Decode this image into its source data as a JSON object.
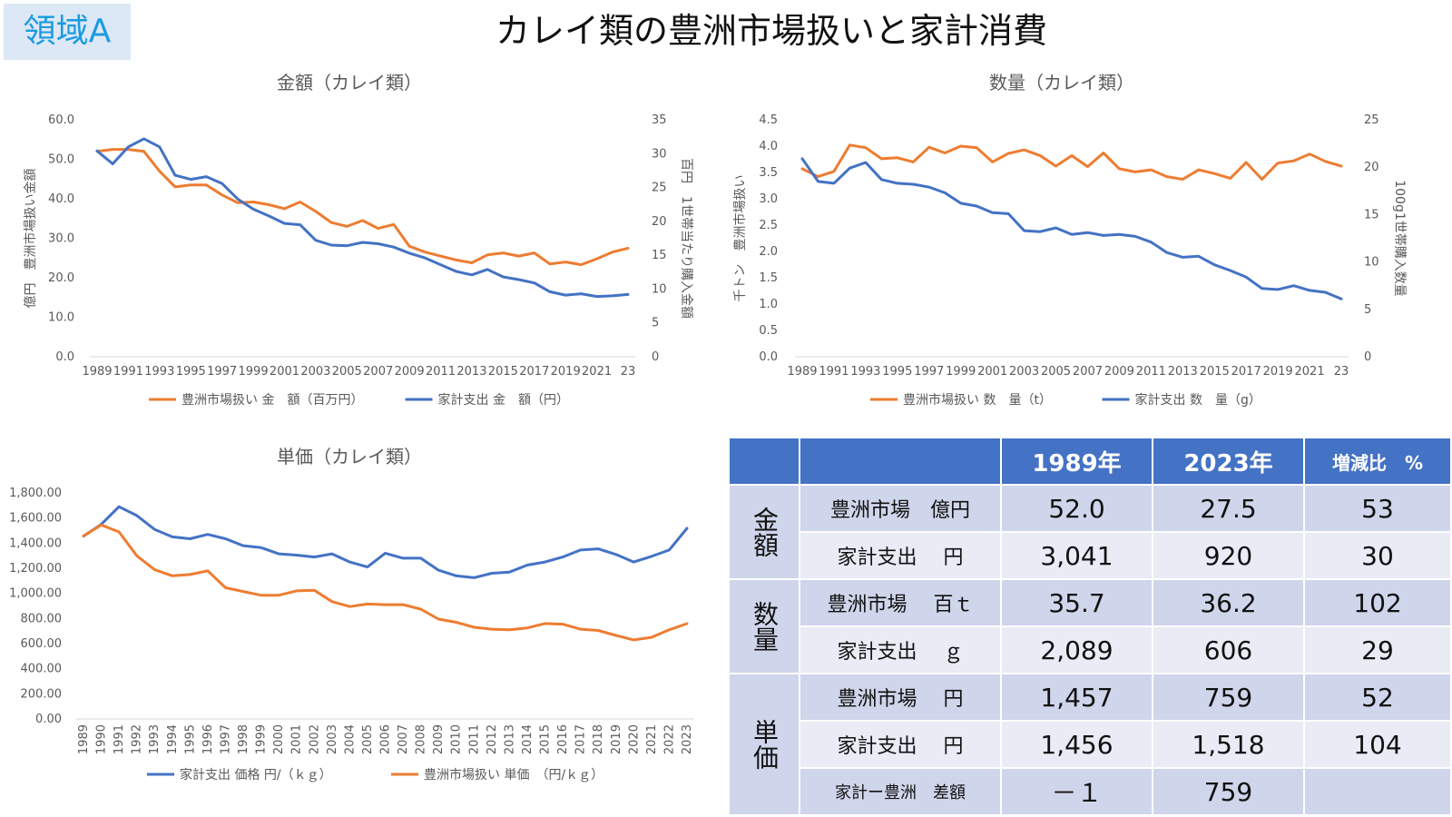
{
  "badge": "領域A",
  "title": "カレイ類の豊洲市場扱いと家計消費",
  "colors": {
    "orange": "#ed7d31",
    "blue": "#4472c4",
    "axis": "#d9d9d9",
    "header": "#4472c4"
  },
  "chart_data": [
    {
      "id": "amount",
      "type": "line",
      "title": "金額（カレイ類）",
      "ylabel_left": "億円　豊洲市場扱い金額",
      "ylabel_right": "百円　1世帯当たり購入金額",
      "x": [
        "1989",
        "1990",
        "1991",
        "1992",
        "1993",
        "1994",
        "1995",
        "1996",
        "1997",
        "1998",
        "1999",
        "2000",
        "2001",
        "2002",
        "2003",
        "2004",
        "2005",
        "2006",
        "2007",
        "2008",
        "2009",
        "2010",
        "2011",
        "2012",
        "2013",
        "2014",
        "2015",
        "2016",
        "2017",
        "2018",
        "2019",
        "2020",
        "2021",
        "2022",
        "2023"
      ],
      "xticks": [
        "1989",
        "1991",
        "1993",
        "1995",
        "1997",
        "1999",
        "2001",
        "2003",
        "2005",
        "2007",
        "2009",
        "2011",
        "2013",
        "2015",
        "2017",
        "2019",
        "2021",
        "2023"
      ],
      "xtick_labels": [
        "1989",
        "1991",
        "1993",
        "1995",
        "1997",
        "1999",
        "2001",
        "2003",
        "2005",
        "2007",
        "2009",
        "2011",
        "2013",
        "2015",
        "2017",
        "2019",
        "2021",
        "23"
      ],
      "left_ylim": [
        0,
        60
      ],
      "left_yticks": [
        "0.0",
        "10.0",
        "20.0",
        "30.0",
        "40.0",
        "50.0",
        "60.0"
      ],
      "right_ylim": [
        0,
        35
      ],
      "right_yticks": [
        "0",
        "5",
        "10",
        "15",
        "20",
        "25",
        "30",
        "35"
      ],
      "series": [
        {
          "name": "豊洲市場扱い 金　額（百万円）",
          "color": "#ed7d31",
          "axis": "left",
          "values": [
            52.0,
            52.5,
            52.5,
            52.0,
            47.0,
            43.0,
            43.5,
            43.5,
            41.0,
            39.0,
            39.2,
            38.5,
            37.5,
            39.2,
            36.8,
            34.0,
            33.0,
            34.5,
            32.5,
            33.5,
            28.0,
            26.5,
            25.5,
            24.5,
            23.8,
            25.8,
            26.3,
            25.5,
            26.3,
            23.5,
            24.0,
            23.3,
            24.8,
            26.5,
            27.5
          ]
        },
        {
          "name": "家計支出 金　額（円）",
          "color": "#4472c4",
          "axis": "right",
          "values": [
            30.4,
            28.5,
            31.0,
            32.2,
            31.0,
            26.8,
            26.2,
            26.6,
            25.6,
            23.3,
            21.8,
            20.8,
            19.7,
            19.5,
            17.2,
            16.5,
            16.4,
            16.9,
            16.7,
            16.2,
            15.3,
            14.6,
            13.6,
            12.6,
            12.1,
            12.9,
            11.8,
            11.4,
            10.9,
            9.6,
            9.1,
            9.3,
            8.9,
            9.0,
            9.2
          ]
        }
      ]
    },
    {
      "id": "volume",
      "type": "line",
      "title": "数量（カレイ類）",
      "ylabel_left": "千トン　豊洲市場扱い",
      "ylabel_right": "100g1世帯購入数量",
      "x": [
        "1989",
        "1990",
        "1991",
        "1992",
        "1993",
        "1994",
        "1995",
        "1996",
        "1997",
        "1998",
        "1999",
        "2000",
        "2001",
        "2002",
        "2003",
        "2004",
        "2005",
        "2006",
        "2007",
        "2008",
        "2009",
        "2010",
        "2011",
        "2012",
        "2013",
        "2014",
        "2015",
        "2016",
        "2017",
        "2018",
        "2019",
        "2020",
        "2021",
        "2022",
        "2023"
      ],
      "xticks": [
        "1989",
        "1991",
        "1993",
        "1995",
        "1997",
        "1999",
        "2001",
        "2003",
        "2005",
        "2007",
        "2009",
        "2011",
        "2013",
        "2015",
        "2017",
        "2019",
        "2021",
        "2023"
      ],
      "xtick_labels": [
        "1989",
        "1991",
        "1993",
        "1995",
        "1997",
        "1999",
        "2001",
        "2003",
        "2005",
        "2007",
        "2009",
        "2011",
        "2013",
        "2015",
        "2017",
        "2019",
        "2021",
        "23"
      ],
      "left_ylim": [
        0,
        4.5
      ],
      "left_yticks": [
        "0.0",
        "0.5",
        "1.0",
        "1.5",
        "2.0",
        "2.5",
        "3.0",
        "3.5",
        "4.0",
        "4.5"
      ],
      "right_ylim": [
        0,
        25
      ],
      "right_yticks": [
        "0",
        "5",
        "10",
        "15",
        "20",
        "25"
      ],
      "series": [
        {
          "name": "豊洲市場扱い 数　量（t）",
          "color": "#ed7d31",
          "axis": "left",
          "values": [
            3.57,
            3.42,
            3.52,
            4.02,
            3.97,
            3.76,
            3.78,
            3.7,
            3.98,
            3.87,
            4.0,
            3.97,
            3.7,
            3.86,
            3.93,
            3.82,
            3.62,
            3.82,
            3.61,
            3.87,
            3.57,
            3.51,
            3.55,
            3.42,
            3.37,
            3.55,
            3.48,
            3.39,
            3.69,
            3.37,
            3.68,
            3.72,
            3.85,
            3.71,
            3.62
          ]
        },
        {
          "name": "家計支出 数　量（g）",
          "color": "#4472c4",
          "axis": "right",
          "values": [
            20.9,
            18.5,
            18.3,
            19.9,
            20.5,
            18.7,
            18.3,
            18.2,
            17.9,
            17.3,
            16.2,
            15.9,
            15.2,
            15.1,
            13.3,
            13.2,
            13.6,
            12.9,
            13.1,
            12.8,
            12.9,
            12.7,
            12.1,
            11.0,
            10.5,
            10.6,
            9.7,
            9.1,
            8.4,
            7.2,
            7.1,
            7.5,
            7.0,
            6.8,
            6.1
          ]
        }
      ]
    },
    {
      "id": "unitprice",
      "type": "line",
      "title": "単価（カレイ類）",
      "x": [
        "1989",
        "1990",
        "1991",
        "1992",
        "1993",
        "1994",
        "1995",
        "1996",
        "1997",
        "1998",
        "1999",
        "2000",
        "2001",
        "2002",
        "2003",
        "2004",
        "2005",
        "2006",
        "2007",
        "2008",
        "2009",
        "2010",
        "2011",
        "2012",
        "2013",
        "2014",
        "2015",
        "2016",
        "2017",
        "2018",
        "2019",
        "2020",
        "2021",
        "2022",
        "2023"
      ],
      "xticks": [
        "1989",
        "1990",
        "1991",
        "1992",
        "1993",
        "1994",
        "1995",
        "1996",
        "1997",
        "1998",
        "1999",
        "2000",
        "2001",
        "2002",
        "2003",
        "2004",
        "2005",
        "2006",
        "2007",
        "2008",
        "2009",
        "2010",
        "2011",
        "2012",
        "2013",
        "2014",
        "2015",
        "2016",
        "2017",
        "2018",
        "2019",
        "2020",
        "2021",
        "2022",
        "2023"
      ],
      "xtick_labels": [
        "1989",
        "1990",
        "1991",
        "1992",
        "1993",
        "1994",
        "1995",
        "1996",
        "1997",
        "1998",
        "1999",
        "2000",
        "2001",
        "2002",
        "2003",
        "2004",
        "2005",
        "2006",
        "2007",
        "2008",
        "2009",
        "2010",
        "2011",
        "2012",
        "2013",
        "2014",
        "2015",
        "2016",
        "2017",
        "2018",
        "2019",
        "2020",
        "2021",
        "2022",
        "2023"
      ],
      "left_ylim": [
        0,
        1800
      ],
      "left_yticks": [
        "0.00",
        "200.00",
        "400.00",
        "600.00",
        "800.00",
        "1,000.00",
        "1,200.00",
        "1,400.00",
        "1,600.00",
        "1,800.00"
      ],
      "series": [
        {
          "name": "家計支出 価格 円/（ｋｇ）",
          "color": "#4472c4",
          "axis": "left",
          "values": [
            1456,
            1550,
            1690,
            1620,
            1510,
            1450,
            1435,
            1470,
            1435,
            1380,
            1365,
            1315,
            1305,
            1290,
            1315,
            1250,
            1210,
            1320,
            1280,
            1280,
            1185,
            1140,
            1125,
            1160,
            1170,
            1225,
            1250,
            1290,
            1345,
            1355,
            1310,
            1250,
            1295,
            1345,
            1518
          ]
        },
        {
          "name": "豊洲市場扱い 単価　（円/ｋｇ）",
          "color": "#ed7d31",
          "axis": "left",
          "values": [
            1457,
            1545,
            1490,
            1300,
            1190,
            1140,
            1150,
            1180,
            1045,
            1015,
            985,
            985,
            1020,
            1025,
            935,
            895,
            915,
            910,
            910,
            875,
            795,
            770,
            730,
            715,
            710,
            725,
            760,
            755,
            715,
            705,
            665,
            630,
            650,
            710,
            759
          ]
        }
      ]
    }
  ],
  "table": {
    "headers": [
      "",
      "",
      "1989年",
      "2023年",
      "増減比　%"
    ],
    "groups": [
      {
        "label": "金額",
        "rows": [
          {
            "label": "豊洲市場　億円",
            "v1989": "52.0",
            "v2023": "27.5",
            "ratio": "53"
          },
          {
            "label": "家計支出　 円",
            "v1989": "3,041",
            "v2023": "920",
            "ratio": "30"
          }
        ]
      },
      {
        "label": "数量",
        "rows": [
          {
            "label": "豊洲市場　 百ｔ",
            "v1989": "35.7",
            "v2023": "36.2",
            "ratio": "102"
          },
          {
            "label": "家計支出　 ｇ",
            "v1989": "2,089",
            "v2023": "606",
            "ratio": "29"
          }
        ]
      },
      {
        "label": "単価",
        "rows": [
          {
            "label": "豊洲市場　 円",
            "v1989": "1,457",
            "v2023": "759",
            "ratio": "52"
          },
          {
            "label": "家計支出　 円",
            "v1989": "1,456",
            "v2023": "1,518",
            "ratio": "104"
          },
          {
            "label": "家計ー豊洲　差額",
            "v1989": "－１",
            "v2023": "759",
            "ratio": ""
          }
        ]
      }
    ]
  }
}
